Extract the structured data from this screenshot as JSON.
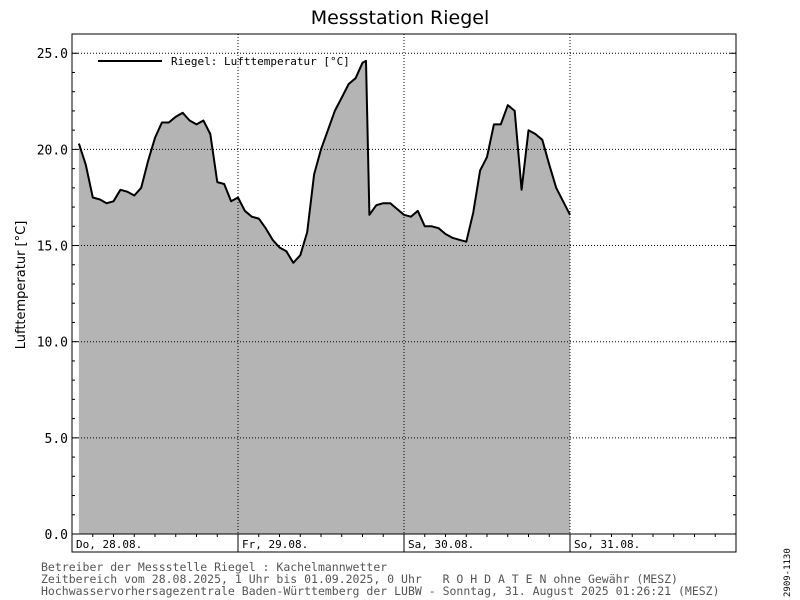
{
  "chart_data": {
    "type": "area",
    "title": "Messstation Riegel",
    "ylabel": "Lufttemperatur [°C]",
    "ylim": [
      0,
      26
    ],
    "xlim": [
      0,
      96
    ],
    "y_ticks": [
      0,
      5,
      10,
      15,
      20,
      25
    ],
    "y_tick_labels": [
      "0.0",
      "5.0",
      "10.0",
      "15.0",
      "20.0",
      "25.0"
    ],
    "day_ticks": [
      0,
      24,
      48,
      72
    ],
    "day_labels": [
      "Do, 28.08.",
      "Fr, 29.08.",
      "Sa, 30.08.",
      "So, 31.08."
    ],
    "grid": true,
    "legend_position": "top-left",
    "colors": {
      "line": "#000000",
      "fill": "#b4b4b4",
      "grid": "#000000"
    },
    "series": [
      {
        "name": "Riegel: Lufttemperatur  [°C]",
        "x": [
          1,
          2,
          3,
          4,
          5,
          6,
          7,
          8,
          9,
          10,
          11,
          12,
          13,
          14,
          15,
          16,
          17,
          18,
          19,
          20,
          21,
          22,
          23,
          24,
          25,
          26,
          27,
          28,
          29,
          30,
          31,
          32,
          33,
          34,
          35,
          36,
          37,
          38,
          39,
          40,
          41,
          42,
          42.5,
          43,
          44,
          45,
          46,
          47,
          48,
          49,
          50,
          51,
          52,
          53,
          54,
          55,
          56,
          57,
          58,
          59,
          60,
          61,
          62,
          63,
          64,
          65,
          66,
          66.5,
          67,
          68,
          69,
          70,
          71,
          72
        ],
        "values": [
          20.3,
          19.2,
          17.5,
          17.4,
          17.2,
          17.3,
          17.9,
          17.8,
          17.6,
          18.0,
          19.4,
          20.6,
          21.4,
          21.4,
          21.7,
          21.9,
          21.5,
          21.3,
          21.5,
          20.8,
          18.3,
          18.2,
          17.3,
          17.5,
          16.8,
          16.5,
          16.4,
          15.9,
          15.3,
          14.9,
          14.7,
          14.1,
          14.5,
          15.7,
          18.7,
          20.0,
          21.0,
          22.0,
          22.7,
          23.4,
          23.7,
          24.5,
          24.6,
          16.6,
          17.1,
          17.2,
          17.2,
          16.9,
          16.6,
          16.5,
          16.8,
          16.0,
          16.0,
          15.9,
          15.6,
          15.4,
          15.3,
          15.2,
          16.7,
          18.9,
          19.6,
          21.3,
          21.3,
          22.3,
          22.0,
          17.9,
          21.0,
          20.9,
          20.8,
          20.5,
          19.2,
          18.0,
          17.3,
          16.6
        ]
      }
    ]
  },
  "footer": {
    "line1": "Betreiber der Messstelle Riegel : Kachelmannwetter",
    "line2": "Zeitbereich vom 28.08.2025, 1 Uhr bis 01.09.2025, 0 Uhr   R O H D A T E N ohne Gewähr (MESZ)",
    "line3": "Hochwasservorhersagezentrale Baden-Württemberg der LUBW - Sonntag, 31. August 2025 01:26:21 (MESZ)"
  },
  "side_code": "2909-1130"
}
